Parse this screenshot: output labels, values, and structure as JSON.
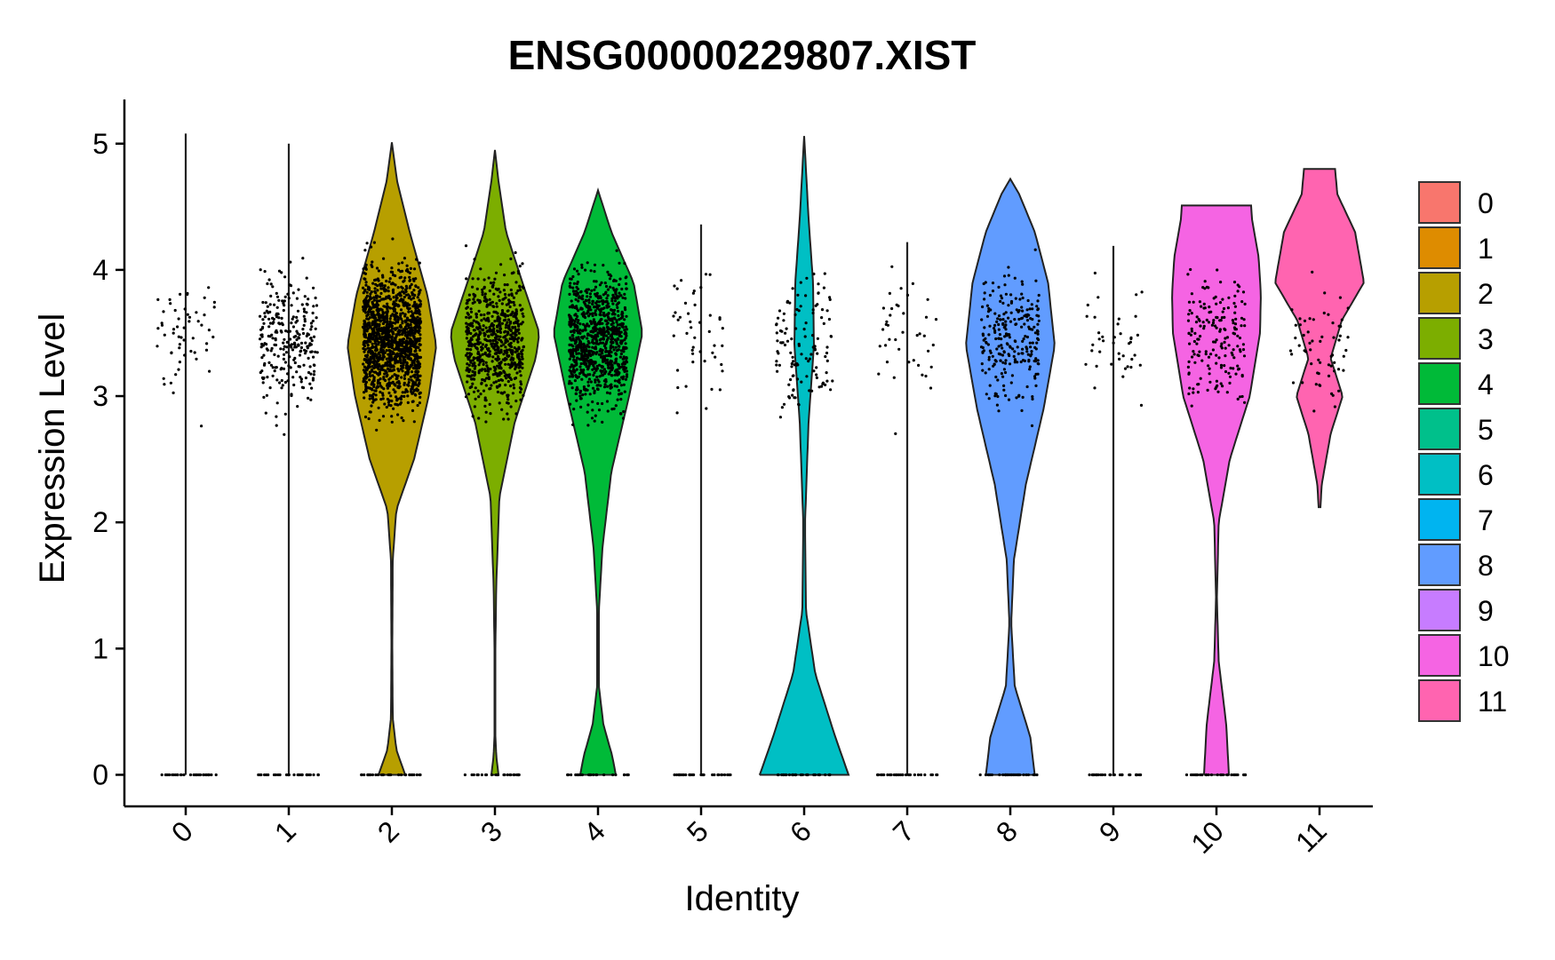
{
  "chart_data": {
    "type": "violin",
    "title": "ENSG00000229807.XIST",
    "xlabel": "Identity",
    "ylabel": "Expression Level",
    "categories": [
      "0",
      "1",
      "2",
      "3",
      "4",
      "5",
      "6",
      "7",
      "8",
      "9",
      "10",
      "11"
    ],
    "ylim": [
      -0.25,
      5.35
    ],
    "yticks": [
      0,
      1,
      2,
      3,
      4,
      5
    ],
    "grid": false,
    "legend": {
      "placement": "right"
    },
    "colors": [
      "#F8766D",
      "#DE8C00",
      "#B79F00",
      "#7CAE00",
      "#00BA38",
      "#00C08B",
      "#00BFC4",
      "#00B4F0",
      "#619CFF",
      "#C77CFF",
      "#F564E3",
      "#FF64B0"
    ],
    "series": [
      {
        "name": "0",
        "max": 5.08,
        "points_nonzero": 55,
        "points_zero": 30,
        "spread": 0.33,
        "violin": []
      },
      {
        "name": "1",
        "max": 5.0,
        "points_nonzero": 260,
        "points_zero": 30,
        "spread": 0.33,
        "violin": []
      },
      {
        "name": "2",
        "max": 5.01,
        "points_nonzero": 1400,
        "points_zero": 30,
        "spread": 0.33,
        "violin": [
          [
            0,
            0.3
          ],
          [
            0.2,
            0.1
          ],
          [
            0.45,
            0.02
          ],
          [
            1.0,
            0.01
          ],
          [
            1.7,
            0.02
          ],
          [
            2.1,
            0.1
          ],
          [
            2.5,
            0.5
          ],
          [
            3.0,
            0.83
          ],
          [
            3.4,
            1.0
          ],
          [
            3.8,
            0.8
          ],
          [
            4.3,
            0.4
          ],
          [
            4.7,
            0.12
          ],
          [
            5.01,
            0
          ]
        ]
      },
      {
        "name": "3",
        "max": 4.95,
        "points_nonzero": 700,
        "points_zero": 25,
        "spread": 0.33,
        "violin": [
          [
            0,
            0.08
          ],
          [
            0.15,
            0.03
          ],
          [
            0.3,
            0.01
          ],
          [
            1.0,
            0.01
          ],
          [
            1.5,
            0.03
          ],
          [
            2.2,
            0.1
          ],
          [
            2.8,
            0.45
          ],
          [
            3.3,
            0.92
          ],
          [
            3.5,
            1.0
          ],
          [
            3.9,
            0.62
          ],
          [
            4.3,
            0.25
          ],
          [
            4.7,
            0.08
          ],
          [
            4.95,
            0
          ]
        ]
      },
      {
        "name": "4",
        "max": 4.63,
        "points_nonzero": 900,
        "points_zero": 25,
        "spread": 0.33,
        "violin": [
          [
            0,
            0.4
          ],
          [
            0.15,
            0.32
          ],
          [
            0.4,
            0.12
          ],
          [
            0.7,
            0.02
          ],
          [
            1.3,
            0.02
          ],
          [
            1.8,
            0.1
          ],
          [
            2.4,
            0.3
          ],
          [
            3.0,
            0.7
          ],
          [
            3.5,
            1.0
          ],
          [
            3.9,
            0.8
          ],
          [
            4.3,
            0.3
          ],
          [
            4.63,
            0
          ]
        ]
      },
      {
        "name": "5",
        "max": 4.36,
        "points_nonzero": 45,
        "points_zero": 30,
        "spread": 0.33,
        "violin": []
      },
      {
        "name": "6",
        "max": 5.06,
        "points_nonzero": 120,
        "points_zero": 30,
        "spread": 0.33,
        "violin": [
          [
            0,
            1.0
          ],
          [
            0.3,
            0.7
          ],
          [
            0.8,
            0.25
          ],
          [
            1.3,
            0.04
          ],
          [
            2.0,
            0.02
          ],
          [
            2.8,
            0.1
          ],
          [
            3.4,
            0.22
          ],
          [
            3.9,
            0.2
          ],
          [
            4.4,
            0.1
          ],
          [
            4.8,
            0.04
          ],
          [
            5.06,
            0
          ]
        ]
      },
      {
        "name": "7",
        "max": 4.22,
        "points_nonzero": 40,
        "points_zero": 30,
        "spread": 0.33,
        "violin": []
      },
      {
        "name": "8",
        "max": 4.72,
        "points_nonzero": 250,
        "points_zero": 30,
        "spread": 0.33,
        "violin": [
          [
            0,
            0.55
          ],
          [
            0.3,
            0.45
          ],
          [
            0.7,
            0.1
          ],
          [
            1.2,
            0.02
          ],
          [
            1.7,
            0.08
          ],
          [
            2.3,
            0.35
          ],
          [
            2.9,
            0.75
          ],
          [
            3.4,
            1.0
          ],
          [
            3.9,
            0.85
          ],
          [
            4.3,
            0.55
          ],
          [
            4.6,
            0.2
          ],
          [
            4.72,
            0
          ]
        ]
      },
      {
        "name": "9",
        "max": 4.19,
        "points_nonzero": 40,
        "points_zero": 30,
        "spread": 0.33,
        "violin": []
      },
      {
        "name": "10",
        "max": 4.51,
        "points_nonzero": 180,
        "points_zero": 30,
        "spread": 0.33,
        "violin": [
          [
            0,
            0.28
          ],
          [
            0.4,
            0.22
          ],
          [
            0.9,
            0.05
          ],
          [
            1.4,
            0.01
          ],
          [
            2.0,
            0.05
          ],
          [
            2.5,
            0.3
          ],
          [
            3.0,
            0.75
          ],
          [
            3.5,
            0.98
          ],
          [
            3.8,
            1.0
          ],
          [
            4.1,
            0.95
          ],
          [
            4.4,
            0.8
          ],
          [
            4.51,
            0.78
          ]
        ]
      },
      {
        "name": "11",
        "max": 4.8,
        "points_nonzero": 60,
        "points_zero": 0,
        "spread": 0.33,
        "violin": [
          [
            2.12,
            0.02
          ],
          [
            2.3,
            0.05
          ],
          [
            2.7,
            0.25
          ],
          [
            3.0,
            0.52
          ],
          [
            3.3,
            0.25
          ],
          [
            3.6,
            0.5
          ],
          [
            3.9,
            1.0
          ],
          [
            4.3,
            0.8
          ],
          [
            4.6,
            0.4
          ],
          [
            4.8,
            0.35
          ]
        ]
      }
    ]
  }
}
